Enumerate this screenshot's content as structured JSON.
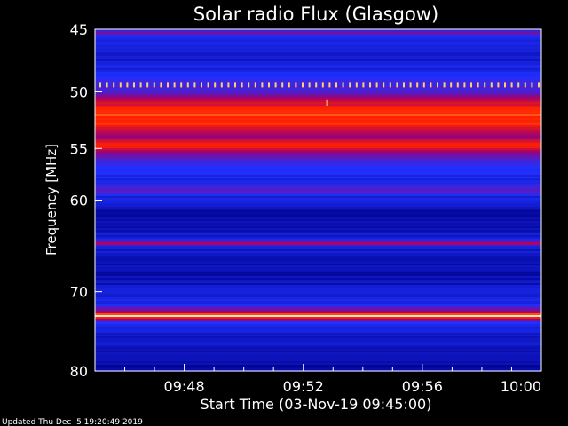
{
  "chart_data": {
    "type": "heatmap",
    "title": "Solar radio Flux (Glasgow)",
    "xlabel": "Start Time (03-Nov-19 09:45:00)",
    "ylabel": "Frequency [MHz]",
    "footer": "Updated Thu Dec  5 19:20:49 2019",
    "x_range_minutes": [
      0,
      15
    ],
    "x_ticks": [
      {
        "minute": 3,
        "label": "09:48"
      },
      {
        "minute": 7,
        "label": "09:52"
      },
      {
        "minute": 11,
        "label": "09:56"
      },
      {
        "minute": 15,
        "label": "10:00"
      }
    ],
    "y_range_mhz": [
      45,
      80
    ],
    "y_log_scale": true,
    "y_ticks": [
      {
        "mhz": 45,
        "label": "45"
      },
      {
        "mhz": 50,
        "label": "50"
      },
      {
        "mhz": 55,
        "label": "55"
      },
      {
        "mhz": 60,
        "label": "60"
      },
      {
        "mhz": 70,
        "label": "70"
      },
      {
        "mhz": 80,
        "label": "80"
      }
    ],
    "colormap": [
      "#000010",
      "#00008a",
      "#2030ff",
      "#a00070",
      "#ff2000",
      "#ffc040",
      "#ffffff"
    ],
    "intensity_profile": [
      {
        "mhz": 45.0,
        "level": 0.3
      },
      {
        "mhz": 45.3,
        "level": 0.46
      },
      {
        "mhz": 45.6,
        "level": 0.3
      },
      {
        "mhz": 47.0,
        "level": 0.26
      },
      {
        "mhz": 48.5,
        "level": 0.3
      },
      {
        "mhz": 49.3,
        "level": 0.36
      },
      {
        "mhz": 50.0,
        "level": 0.4
      },
      {
        "mhz": 50.8,
        "level": 0.55
      },
      {
        "mhz": 51.3,
        "level": 0.66
      },
      {
        "mhz": 52.0,
        "level": 0.7
      },
      {
        "mhz": 52.8,
        "level": 0.66
      },
      {
        "mhz": 53.5,
        "level": 0.56
      },
      {
        "mhz": 54.0,
        "level": 0.48
      },
      {
        "mhz": 54.4,
        "level": 0.62
      },
      {
        "mhz": 54.8,
        "level": 0.66
      },
      {
        "mhz": 55.2,
        "level": 0.52
      },
      {
        "mhz": 55.8,
        "level": 0.4
      },
      {
        "mhz": 57.0,
        "level": 0.33
      },
      {
        "mhz": 58.0,
        "level": 0.3
      },
      {
        "mhz": 59.2,
        "level": 0.42
      },
      {
        "mhz": 59.6,
        "level": 0.29
      },
      {
        "mhz": 61.0,
        "level": 0.22
      },
      {
        "mhz": 63.0,
        "level": 0.22
      },
      {
        "mhz": 64.0,
        "level": 0.28
      },
      {
        "mhz": 64.5,
        "level": 0.52
      },
      {
        "mhz": 65.0,
        "level": 0.26
      },
      {
        "mhz": 66.0,
        "level": 0.24
      },
      {
        "mhz": 68.0,
        "level": 0.22
      },
      {
        "mhz": 70.0,
        "level": 0.26
      },
      {
        "mhz": 71.5,
        "level": 0.3
      },
      {
        "mhz": 72.6,
        "level": 0.55
      },
      {
        "mhz": 72.9,
        "level": 0.98
      },
      {
        "mhz": 73.2,
        "level": 0.55
      },
      {
        "mhz": 74.0,
        "level": 0.28
      },
      {
        "mhz": 76.0,
        "level": 0.25
      },
      {
        "mhz": 78.0,
        "level": 0.23
      },
      {
        "mhz": 80.0,
        "level": 0.2
      }
    ],
    "periodic_marker": {
      "mhz": 49.4,
      "color": "#ffd070"
    },
    "burst_marker": {
      "minute": 7.8,
      "mhz": 51.0,
      "color": "#ffe060"
    }
  }
}
